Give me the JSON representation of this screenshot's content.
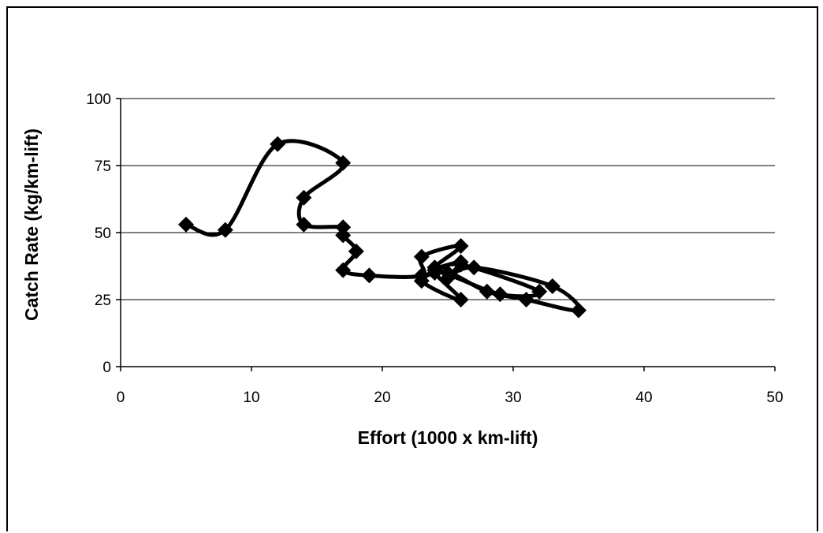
{
  "chart_data": {
    "type": "line",
    "title": "",
    "xlabel": "Effort (1000 x km-lift)",
    "ylabel": "Catch Rate (kg/km-lift)",
    "xlim": [
      0,
      50
    ],
    "ylim": [
      0,
      100
    ],
    "x_ticks": [
      0,
      10,
      20,
      30,
      40,
      50
    ],
    "y_ticks": [
      0,
      25,
      50,
      75,
      100
    ],
    "x_tick_labels": [
      "0",
      "10",
      "20",
      "30",
      "40",
      "50"
    ],
    "y_tick_labels": [
      "0",
      "25",
      "50",
      "75",
      "100"
    ],
    "grid": "horizontal",
    "legend": "none",
    "smooth": true,
    "marker": "diamond",
    "colors": {
      "line": "#000000",
      "marker": "#000000",
      "grid": "#000000"
    },
    "series": [
      {
        "x": [
          5,
          8,
          12,
          17,
          14,
          14,
          17,
          17,
          18,
          17,
          19,
          23,
          23,
          26,
          24,
          26,
          25,
          27,
          33,
          35,
          31,
          28,
          25,
          23,
          26,
          24,
          29,
          32,
          26,
          24
        ],
        "y": [
          53,
          51,
          83,
          76,
          63,
          53,
          52,
          49,
          43,
          36,
          34,
          34,
          41,
          45,
          37,
          39,
          33,
          37,
          30,
          21,
          25,
          28,
          35,
          32,
          25,
          36,
          27,
          28,
          38,
          35
        ]
      }
    ]
  }
}
